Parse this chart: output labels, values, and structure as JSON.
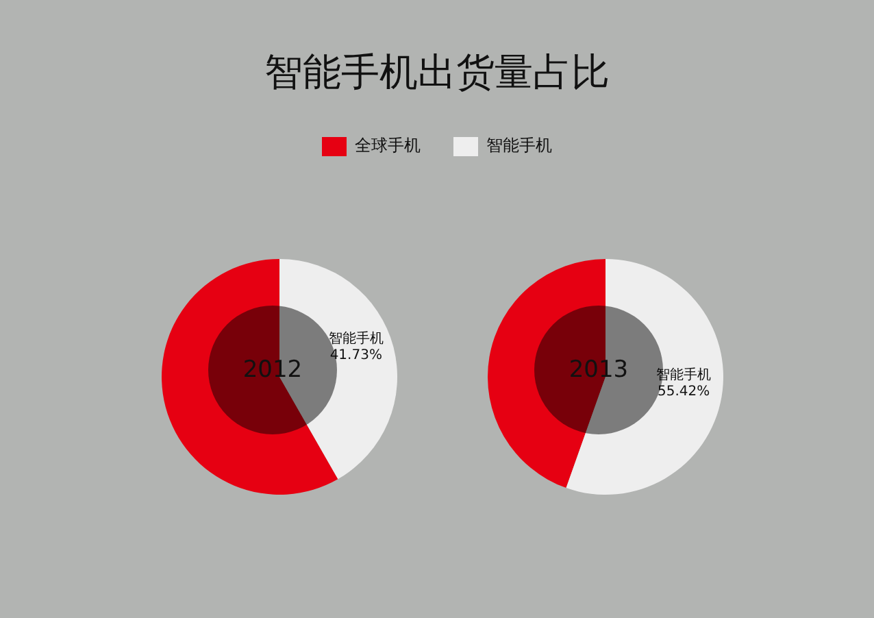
{
  "chart_data": [
    {
      "type": "pie",
      "title": "智能手机出货量占比",
      "categories": [
        "全球手机",
        "智能手机"
      ],
      "values": [
        58.27,
        41.73
      ],
      "colors": [
        "#e60012",
        "#eeeeee"
      ],
      "value_labels": [
        null,
        "41.73%"
      ],
      "legend": "top",
      "annotations": [
        "2012"
      ]
    },
    {
      "type": "pie",
      "categories": [
        null,
        "智能手机"
      ],
      "values": [
        44.58,
        55.42
      ],
      "colors": [
        "#e60012",
        "#eeeeee"
      ],
      "value_labels": [
        null,
        "55.42%"
      ],
      "annotations": [
        "2013"
      ]
    }
  ]
}
